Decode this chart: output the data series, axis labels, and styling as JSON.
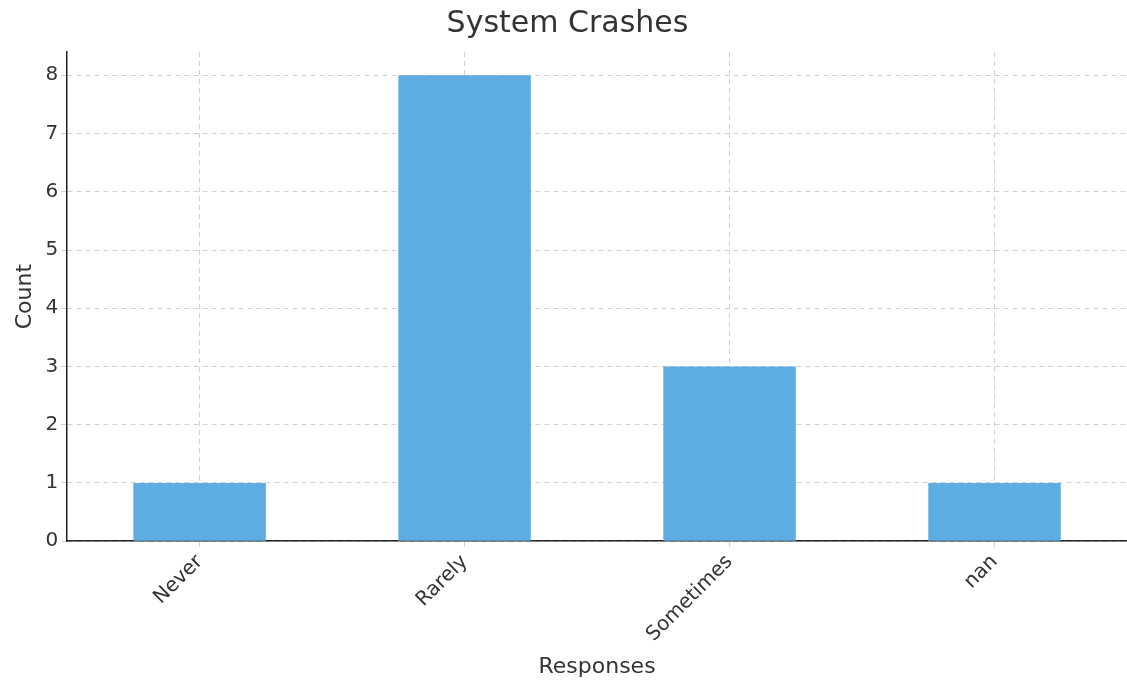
{
  "chart_data": {
    "type": "bar",
    "title": "System Crashes",
    "xlabel": "Responses",
    "ylabel": "Count",
    "categories": [
      "Never",
      "Rarely",
      "Sometimes",
      "nan"
    ],
    "values": [
      1,
      8,
      3,
      1
    ],
    "color": "#5dade2",
    "ylim": [
      0,
      8.4
    ],
    "yticks": [
      0,
      1,
      2,
      3,
      4,
      5,
      6,
      7,
      8
    ],
    "grid": true,
    "legend": false
  }
}
